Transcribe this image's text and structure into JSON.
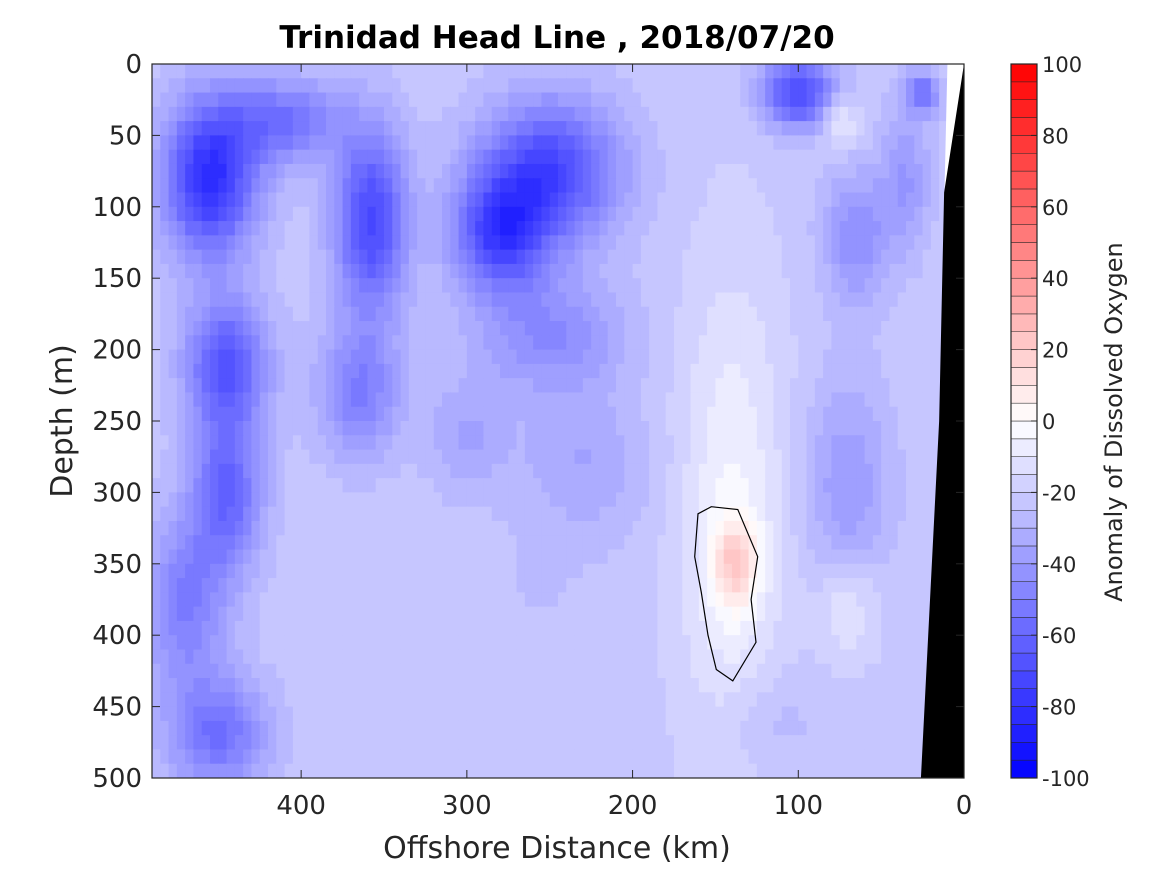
{
  "chart_data": {
    "type": "heatmap",
    "title": "Trinidad Head Line , 2018/07/20",
    "xlabel": "Offshore Distance (km)",
    "ylabel": "Depth (m)",
    "colorbar_label": "Anomaly of Dissolved Oxygen",
    "xlim": [
      490,
      0
    ],
    "ylim": [
      0,
      500
    ],
    "x_ticks": [
      400,
      300,
      200,
      100,
      0
    ],
    "y_ticks": [
      0,
      50,
      100,
      150,
      200,
      250,
      300,
      350,
      400,
      450,
      500
    ],
    "clim": [
      -100,
      100
    ],
    "colorbar_ticks": [
      100,
      80,
      60,
      40,
      20,
      0,
      -20,
      -40,
      -60,
      -80,
      -100
    ],
    "colormap": {
      "low": "#0000ff",
      "mid": "#ffffff",
      "high": "#ff0000"
    },
    "bathymetry_color": "#000000",
    "contour_level": 0,
    "anomaly_blobs": [
      {
        "x": 455,
        "y": 80,
        "rx": 28,
        "ry": 55,
        "value": -82
      },
      {
        "x": 445,
        "y": 210,
        "rx": 25,
        "ry": 45,
        "value": -65
      },
      {
        "x": 445,
        "y": 300,
        "rx": 22,
        "ry": 55,
        "value": -60
      },
      {
        "x": 450,
        "y": 470,
        "rx": 30,
        "ry": 40,
        "value": -55
      },
      {
        "x": 470,
        "y": 380,
        "rx": 25,
        "ry": 60,
        "value": -50
      },
      {
        "x": 410,
        "y": 40,
        "rx": 35,
        "ry": 30,
        "value": -55
      },
      {
        "x": 358,
        "y": 110,
        "rx": 22,
        "ry": 65,
        "value": -72
      },
      {
        "x": 365,
        "y": 230,
        "rx": 25,
        "ry": 45,
        "value": -50
      },
      {
        "x": 250,
        "y": 75,
        "rx": 42,
        "ry": 50,
        "value": -72
      },
      {
        "x": 280,
        "y": 120,
        "rx": 28,
        "ry": 40,
        "value": -70
      },
      {
        "x": 250,
        "y": 190,
        "rx": 45,
        "ry": 40,
        "value": -45
      },
      {
        "x": 230,
        "y": 280,
        "rx": 40,
        "ry": 50,
        "value": -35
      },
      {
        "x": 300,
        "y": 260,
        "rx": 25,
        "ry": 40,
        "value": -35
      },
      {
        "x": 260,
        "y": 370,
        "rx": 45,
        "ry": 45,
        "value": -25
      },
      {
        "x": 330,
        "y": 420,
        "rx": 40,
        "ry": 60,
        "value": -20
      },
      {
        "x": 100,
        "y": 20,
        "rx": 22,
        "ry": 25,
        "value": -72
      },
      {
        "x": 75,
        "y": 40,
        "rx": 12,
        "ry": 20,
        "value": -5
      },
      {
        "x": 65,
        "y": 120,
        "rx": 20,
        "ry": 45,
        "value": -45
      },
      {
        "x": 70,
        "y": 300,
        "rx": 25,
        "ry": 80,
        "value": -40
      },
      {
        "x": 35,
        "y": 80,
        "rx": 15,
        "ry": 50,
        "value": -40
      },
      {
        "x": 25,
        "y": 20,
        "rx": 10,
        "ry": 15,
        "value": -55
      },
      {
        "x": 120,
        "y": 460,
        "rx": 30,
        "ry": 35,
        "value": -30
      },
      {
        "x": 140,
        "y": 320,
        "rx": 32,
        "ry": 170,
        "value": -4
      },
      {
        "x": 138,
        "y": 350,
        "rx": 14,
        "ry": 30,
        "value": 6
      },
      {
        "x": 70,
        "y": 380,
        "rx": 20,
        "ry": 40,
        "value": -6
      }
    ],
    "contour_region": {
      "x_range": [
        125,
        160
      ],
      "y_range": [
        310,
        432
      ]
    }
  }
}
